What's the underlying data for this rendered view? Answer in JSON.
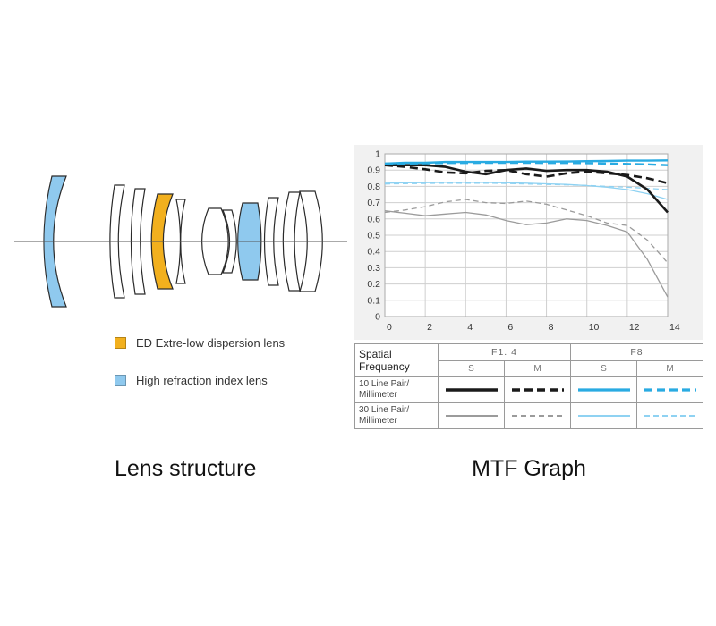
{
  "page": {
    "background": "#ffffff"
  },
  "lens_diagram": {
    "caption": "Lens structure",
    "legend": [
      {
        "label": "ED Extre-low dispersion lens",
        "color": "#F2B01E"
      },
      {
        "label": "High refraction index lens",
        "color": "#8FC9EE"
      }
    ]
  },
  "mtf": {
    "caption": "MTF Graph",
    "table": {
      "corner_label": "Spatial Frequency",
      "groups": [
        "F1. 4",
        "F8"
      ],
      "subheaders": [
        "S",
        "M",
        "S",
        "M"
      ],
      "rows": [
        {
          "label": "10 Line Pair/ Millimeter",
          "samples": [
            "f14_s_10",
            "f14_m_10",
            "f8_s_10",
            "f8_m_10"
          ]
        },
        {
          "label": "30 Line Pair/ Millimeter",
          "samples": [
            "f14_s_30",
            "f14_m_30",
            "f8_s_30",
            "f8_m_30"
          ]
        }
      ]
    }
  },
  "chart_data": {
    "type": "line",
    "title": "MTF Graph",
    "xlabel": "",
    "ylabel": "",
    "xlim": [
      0,
      14
    ],
    "ylim": [
      0,
      1
    ],
    "x_ticks": [
      0,
      2,
      4,
      6,
      8,
      10,
      12,
      14
    ],
    "y_ticks": [
      0,
      0.1,
      0.2,
      0.3,
      0.4,
      0.5,
      0.6,
      0.7,
      0.8,
      0.9,
      1
    ],
    "grid": true,
    "legend_position": "table-below",
    "x": [
      0,
      1,
      2,
      3,
      4,
      5,
      6,
      7,
      8,
      9,
      10,
      11,
      12,
      13,
      14
    ],
    "series": [
      {
        "id": "f14_s_30",
        "name": "F1.4 S 30 Line Pair/Millimeter",
        "color": "#9b9b9b",
        "width": 1.3,
        "dash": "",
        "values": [
          0.65,
          0.635,
          0.62,
          0.63,
          0.64,
          0.625,
          0.59,
          0.565,
          0.575,
          0.6,
          0.59,
          0.56,
          0.52,
          0.35,
          0.12
        ]
      },
      {
        "id": "f14_m_30",
        "name": "F1.4 M 30 Line Pair/Millimeter",
        "color": "#9b9b9b",
        "width": 1.3,
        "dash": "6 4",
        "values": [
          0.64,
          0.655,
          0.675,
          0.705,
          0.72,
          0.7,
          0.695,
          0.71,
          0.69,
          0.655,
          0.62,
          0.575,
          0.56,
          0.47,
          0.33
        ]
      },
      {
        "id": "f8_s_30",
        "name": "F8 S 30 Line Pair/Millimeter",
        "color": "#8fd2f2",
        "width": 1.3,
        "dash": "",
        "values": [
          0.82,
          0.822,
          0.823,
          0.825,
          0.825,
          0.824,
          0.822,
          0.82,
          0.816,
          0.812,
          0.805,
          0.795,
          0.78,
          0.755,
          0.72
        ]
      },
      {
        "id": "f8_m_30",
        "name": "F8 M 30 Line Pair/Millimeter",
        "color": "#8fd2f2",
        "width": 1.3,
        "dash": "6 4",
        "values": [
          0.815,
          0.817,
          0.818,
          0.82,
          0.82,
          0.82,
          0.818,
          0.815,
          0.812,
          0.81,
          0.806,
          0.8,
          0.795,
          0.788,
          0.78
        ]
      },
      {
        "id": "f14_s_10",
        "name": "F1.4 S 10 Line Pair/Millimeter",
        "color": "#1a1a1a",
        "width": 2.6,
        "dash": "",
        "values": [
          0.93,
          0.93,
          0.93,
          0.92,
          0.89,
          0.875,
          0.9,
          0.91,
          0.895,
          0.9,
          0.9,
          0.89,
          0.86,
          0.78,
          0.64
        ]
      },
      {
        "id": "f14_m_10",
        "name": "F1.4 M 10 Line Pair/Millimeter",
        "color": "#1a1a1a",
        "width": 2.6,
        "dash": "9 5",
        "values": [
          0.93,
          0.92,
          0.905,
          0.885,
          0.88,
          0.895,
          0.9,
          0.875,
          0.86,
          0.88,
          0.89,
          0.88,
          0.87,
          0.85,
          0.82
        ]
      },
      {
        "id": "f8_s_10",
        "name": "F8 S 10 Line Pair/Millimeter",
        "color": "#29abe2",
        "width": 2.4,
        "dash": "",
        "values": [
          0.94,
          0.945,
          0.945,
          0.95,
          0.95,
          0.95,
          0.95,
          0.952,
          0.952,
          0.953,
          0.955,
          0.956,
          0.958,
          0.958,
          0.96
        ]
      },
      {
        "id": "f8_m_10",
        "name": "F8 M 10 Line Pair/Millimeter",
        "color": "#29abe2",
        "width": 2.4,
        "dash": "9 5",
        "values": [
          0.94,
          0.94,
          0.942,
          0.944,
          0.944,
          0.945,
          0.945,
          0.945,
          0.944,
          0.944,
          0.943,
          0.94,
          0.938,
          0.935,
          0.93
        ]
      }
    ]
  },
  "colors": {
    "lens_yellow": "#F2B01E",
    "lens_blue": "#8FC9EE",
    "chart_bg": "#f1f1f1",
    "plot_bg": "#ffffff",
    "grid": "#cfcfcf",
    "plot_border": "#aaaaaa",
    "axis_line": "#555555",
    "table_border": "#9a9a9a"
  }
}
